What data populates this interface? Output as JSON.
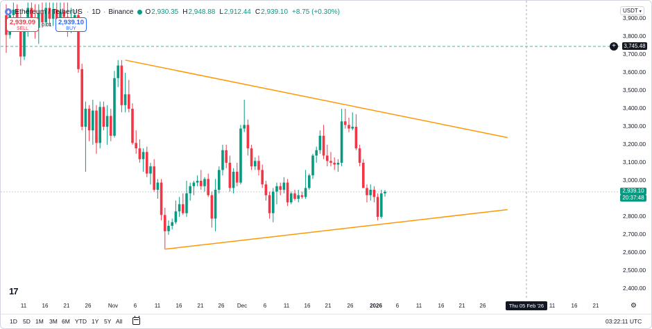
{
  "legend": {
    "symbol_name": "Ethereum / TetherUS",
    "timeframe": "1D",
    "separator": "·",
    "exchange": "Binance",
    "open_label": "O",
    "open_value": "2,930.35",
    "high_label": "H",
    "high_value": "2,948.88",
    "low_label": "L",
    "low_value": "2,912.44",
    "close_label": "C",
    "close_value": "2,939.10",
    "change": "+8.75 (+0.30%)"
  },
  "trade": {
    "sell_price": "2,939.09",
    "sell_label": "SELL",
    "spread": "0.01",
    "buy_price": "2,939.10",
    "buy_label": "BUY"
  },
  "price_axis": {
    "currency": "USDT",
    "ticks": [
      "3,900.00",
      "3,800.00",
      "3,700.00",
      "3,600.00",
      "3,500.00",
      "3,400.00",
      "3,300.00",
      "3,200.00",
      "3,100.00",
      "3,000.00",
      "2,900.00",
      "2,800.00",
      "2,700.00",
      "2,600.00",
      "2,500.00",
      "2,400.00"
    ],
    "last_price": "2,939.10",
    "countdown": "20:37:48",
    "horizontal_line_price": "3,745.48"
  },
  "time_axis": {
    "labels": [
      "11",
      "16",
      "21",
      "26",
      "Nov",
      "6",
      "11",
      "16",
      "21",
      "26",
      "Dec",
      "6",
      "11",
      "16",
      "21",
      "26",
      "2026",
      "6",
      "11",
      "16",
      "21",
      "26",
      "11",
      "16",
      "21"
    ],
    "crosshair_label": "Thu 05 Feb '26"
  },
  "bottom_bar": {
    "ranges": [
      "1D",
      "5D",
      "1M",
      "3M",
      "6M",
      "YTD",
      "1Y",
      "5Y",
      "All"
    ],
    "clock": "03:22:11 UTC"
  },
  "colors": {
    "up": "#089981",
    "down": "#f23645",
    "trendline": "#ff9800",
    "accent": "#2962ff"
  },
  "chart_data": {
    "type": "candlestick",
    "symbol": "ETH/USDT",
    "ylim": [
      2400,
      3900
    ],
    "candles": [
      {
        "o": 3920,
        "h": 3980,
        "l": 3710,
        "c": 3810
      },
      {
        "o": 3810,
        "h": 3950,
        "l": 3790,
        "c": 3920
      },
      {
        "o": 3920,
        "h": 3990,
        "l": 3860,
        "c": 3950
      },
      {
        "o": 3950,
        "h": 3980,
        "l": 3830,
        "c": 3860
      },
      {
        "o": 3860,
        "h": 3930,
        "l": 3640,
        "c": 3690
      },
      {
        "o": 3690,
        "h": 3870,
        "l": 3670,
        "c": 3830
      },
      {
        "o": 3830,
        "h": 3990,
        "l": 3800,
        "c": 3960
      },
      {
        "o": 3960,
        "h": 3990,
        "l": 3880,
        "c": 3900
      },
      {
        "o": 3900,
        "h": 3980,
        "l": 3790,
        "c": 3850
      },
      {
        "o": 3850,
        "h": 3980,
        "l": 3760,
        "c": 3930
      },
      {
        "o": 3930,
        "h": 3990,
        "l": 3850,
        "c": 3880
      },
      {
        "o": 3880,
        "h": 3990,
        "l": 3860,
        "c": 3960
      },
      {
        "o": 3960,
        "h": 3990,
        "l": 3860,
        "c": 3900
      },
      {
        "o": 3900,
        "h": 3990,
        "l": 3860,
        "c": 3950
      },
      {
        "o": 3950,
        "h": 3990,
        "l": 3850,
        "c": 3880
      },
      {
        "o": 3880,
        "h": 3990,
        "l": 3850,
        "c": 3940
      },
      {
        "o": 3940,
        "h": 3990,
        "l": 3870,
        "c": 3910
      },
      {
        "o": 3910,
        "h": 3990,
        "l": 3800,
        "c": 3850
      },
      {
        "o": 3850,
        "h": 3960,
        "l": 3820,
        "c": 3890
      },
      {
        "o": 3890,
        "h": 3950,
        "l": 3840,
        "c": 3920
      },
      {
        "o": 3920,
        "h": 3950,
        "l": 3600,
        "c": 3620
      },
      {
        "o": 3620,
        "h": 3650,
        "l": 3280,
        "c": 3300
      },
      {
        "o": 3300,
        "h": 3440,
        "l": 3050,
        "c": 3400
      },
      {
        "o": 3400,
        "h": 3420,
        "l": 3220,
        "c": 3280
      },
      {
        "o": 3280,
        "h": 3450,
        "l": 3200,
        "c": 3390
      },
      {
        "o": 3390,
        "h": 3420,
        "l": 3150,
        "c": 3210
      },
      {
        "o": 3210,
        "h": 3440,
        "l": 3180,
        "c": 3410
      },
      {
        "o": 3410,
        "h": 3440,
        "l": 3280,
        "c": 3300
      },
      {
        "o": 3300,
        "h": 3420,
        "l": 3200,
        "c": 3360
      },
      {
        "o": 3360,
        "h": 3400,
        "l": 3220,
        "c": 3250
      },
      {
        "o": 3250,
        "h": 3610,
        "l": 3240,
        "c": 3570
      },
      {
        "o": 3570,
        "h": 3670,
        "l": 3520,
        "c": 3640
      },
      {
        "o": 3640,
        "h": 3670,
        "l": 3380,
        "c": 3420
      },
      {
        "o": 3420,
        "h": 3600,
        "l": 3380,
        "c": 3480
      },
      {
        "o": 3480,
        "h": 3560,
        "l": 3380,
        "c": 3400
      },
      {
        "o": 3400,
        "h": 3430,
        "l": 3200,
        "c": 3210
      },
      {
        "o": 3210,
        "h": 3280,
        "l": 3150,
        "c": 3180
      },
      {
        "o": 3180,
        "h": 3230,
        "l": 3100,
        "c": 3120
      },
      {
        "o": 3120,
        "h": 3180,
        "l": 3050,
        "c": 3160
      },
      {
        "o": 3160,
        "h": 3190,
        "l": 3020,
        "c": 3040
      },
      {
        "o": 3040,
        "h": 3100,
        "l": 2980,
        "c": 3080
      },
      {
        "o": 3080,
        "h": 3120,
        "l": 2940,
        "c": 2950
      },
      {
        "o": 2950,
        "h": 3010,
        "l": 2900,
        "c": 2990
      },
      {
        "o": 2990,
        "h": 3010,
        "l": 2780,
        "c": 2810
      },
      {
        "o": 2810,
        "h": 2850,
        "l": 2620,
        "c": 2720
      },
      {
        "o": 2720,
        "h": 2780,
        "l": 2700,
        "c": 2750
      },
      {
        "o": 2750,
        "h": 2790,
        "l": 2730,
        "c": 2770
      },
      {
        "o": 2770,
        "h": 2890,
        "l": 2760,
        "c": 2830
      },
      {
        "o": 2830,
        "h": 2910,
        "l": 2800,
        "c": 2870
      },
      {
        "o": 2870,
        "h": 2930,
        "l": 2810,
        "c": 2820
      },
      {
        "o": 2820,
        "h": 3000,
        "l": 2800,
        "c": 2930
      },
      {
        "o": 2930,
        "h": 2990,
        "l": 2890,
        "c": 2970
      },
      {
        "o": 2970,
        "h": 3000,
        "l": 2920,
        "c": 2990
      },
      {
        "o": 2990,
        "h": 3030,
        "l": 2970,
        "c": 3000
      },
      {
        "o": 3000,
        "h": 3060,
        "l": 2950,
        "c": 2970
      },
      {
        "o": 2970,
        "h": 3020,
        "l": 2940,
        "c": 3010
      },
      {
        "o": 3010,
        "h": 3040,
        "l": 2910,
        "c": 2920
      },
      {
        "o": 2920,
        "h": 2940,
        "l": 2740,
        "c": 2790
      },
      {
        "o": 2790,
        "h": 3010,
        "l": 2720,
        "c": 2950
      },
      {
        "o": 2950,
        "h": 3080,
        "l": 2930,
        "c": 3060
      },
      {
        "o": 3060,
        "h": 3200,
        "l": 3030,
        "c": 3170
      },
      {
        "o": 3170,
        "h": 3200,
        "l": 3070,
        "c": 3100
      },
      {
        "o": 3100,
        "h": 3140,
        "l": 2940,
        "c": 2960
      },
      {
        "o": 2960,
        "h": 3070,
        "l": 2930,
        "c": 3050
      },
      {
        "o": 3050,
        "h": 3100,
        "l": 2970,
        "c": 2990
      },
      {
        "o": 2990,
        "h": 3310,
        "l": 2980,
        "c": 3290
      },
      {
        "o": 3290,
        "h": 3450,
        "l": 3270,
        "c": 3310
      },
      {
        "o": 3310,
        "h": 3340,
        "l": 3140,
        "c": 3180
      },
      {
        "o": 3180,
        "h": 3200,
        "l": 3060,
        "c": 3080
      },
      {
        "o": 3080,
        "h": 3130,
        "l": 3060,
        "c": 3110
      },
      {
        "o": 3110,
        "h": 3140,
        "l": 3030,
        "c": 3060
      },
      {
        "o": 3060,
        "h": 3090,
        "l": 2960,
        "c": 2980
      },
      {
        "o": 2980,
        "h": 3000,
        "l": 2890,
        "c": 2920
      },
      {
        "o": 2920,
        "h": 2940,
        "l": 2790,
        "c": 2820
      },
      {
        "o": 2820,
        "h": 2960,
        "l": 2770,
        "c": 2940
      },
      {
        "o": 2940,
        "h": 2990,
        "l": 2870,
        "c": 2970
      },
      {
        "o": 2970,
        "h": 2990,
        "l": 2920,
        "c": 2950
      },
      {
        "o": 2950,
        "h": 3020,
        "l": 2930,
        "c": 2990
      },
      {
        "o": 2990,
        "h": 3010,
        "l": 2860,
        "c": 2880
      },
      {
        "o": 2880,
        "h": 2940,
        "l": 2870,
        "c": 2930
      },
      {
        "o": 2930,
        "h": 2950,
        "l": 2890,
        "c": 2900
      },
      {
        "o": 2900,
        "h": 2950,
        "l": 2880,
        "c": 2920
      },
      {
        "o": 2920,
        "h": 2940,
        "l": 2900,
        "c": 2910
      },
      {
        "o": 2910,
        "h": 3060,
        "l": 2900,
        "c": 2960
      },
      {
        "o": 2960,
        "h": 3040,
        "l": 2950,
        "c": 3030
      },
      {
        "o": 3030,
        "h": 3150,
        "l": 3010,
        "c": 3140
      },
      {
        "o": 3140,
        "h": 3190,
        "l": 3100,
        "c": 3170
      },
      {
        "o": 3170,
        "h": 3280,
        "l": 3150,
        "c": 3250
      },
      {
        "o": 3250,
        "h": 3310,
        "l": 3120,
        "c": 3140
      },
      {
        "o": 3140,
        "h": 3200,
        "l": 3080,
        "c": 3110
      },
      {
        "o": 3110,
        "h": 3160,
        "l": 3080,
        "c": 3100
      },
      {
        "o": 3100,
        "h": 3130,
        "l": 3060,
        "c": 3090
      },
      {
        "o": 3090,
        "h": 3120,
        "l": 3050,
        "c": 3100
      },
      {
        "o": 3100,
        "h": 3400,
        "l": 3080,
        "c": 3330
      },
      {
        "o": 3330,
        "h": 3400,
        "l": 3290,
        "c": 3310
      },
      {
        "o": 3310,
        "h": 3350,
        "l": 3270,
        "c": 3290
      },
      {
        "o": 3290,
        "h": 3380,
        "l": 3280,
        "c": 3300
      },
      {
        "o": 3300,
        "h": 3370,
        "l": 3170,
        "c": 3180
      },
      {
        "o": 3180,
        "h": 3200,
        "l": 3080,
        "c": 3100
      },
      {
        "o": 3100,
        "h": 3120,
        "l": 2960,
        "c": 2960
      },
      {
        "o": 2960,
        "h": 2980,
        "l": 2880,
        "c": 2920
      },
      {
        "o": 2920,
        "h": 2980,
        "l": 2890,
        "c": 2950
      },
      {
        "o": 2950,
        "h": 2970,
        "l": 2880,
        "c": 2910
      },
      {
        "o": 2910,
        "h": 2930,
        "l": 2780,
        "c": 2800
      },
      {
        "o": 2800,
        "h": 2950,
        "l": 2790,
        "c": 2930
      },
      {
        "o": 2930,
        "h": 2949,
        "l": 2912,
        "c": 2939
      }
    ],
    "trendlines": [
      {
        "name": "upper",
        "from": {
          "index": 33,
          "price": 3670
        },
        "to": {
          "index": 139,
          "price": 3240
        }
      },
      {
        "name": "lower",
        "from": {
          "index": 44,
          "price": 2620
        },
        "to": {
          "index": 139,
          "price": 2840
        }
      }
    ]
  }
}
